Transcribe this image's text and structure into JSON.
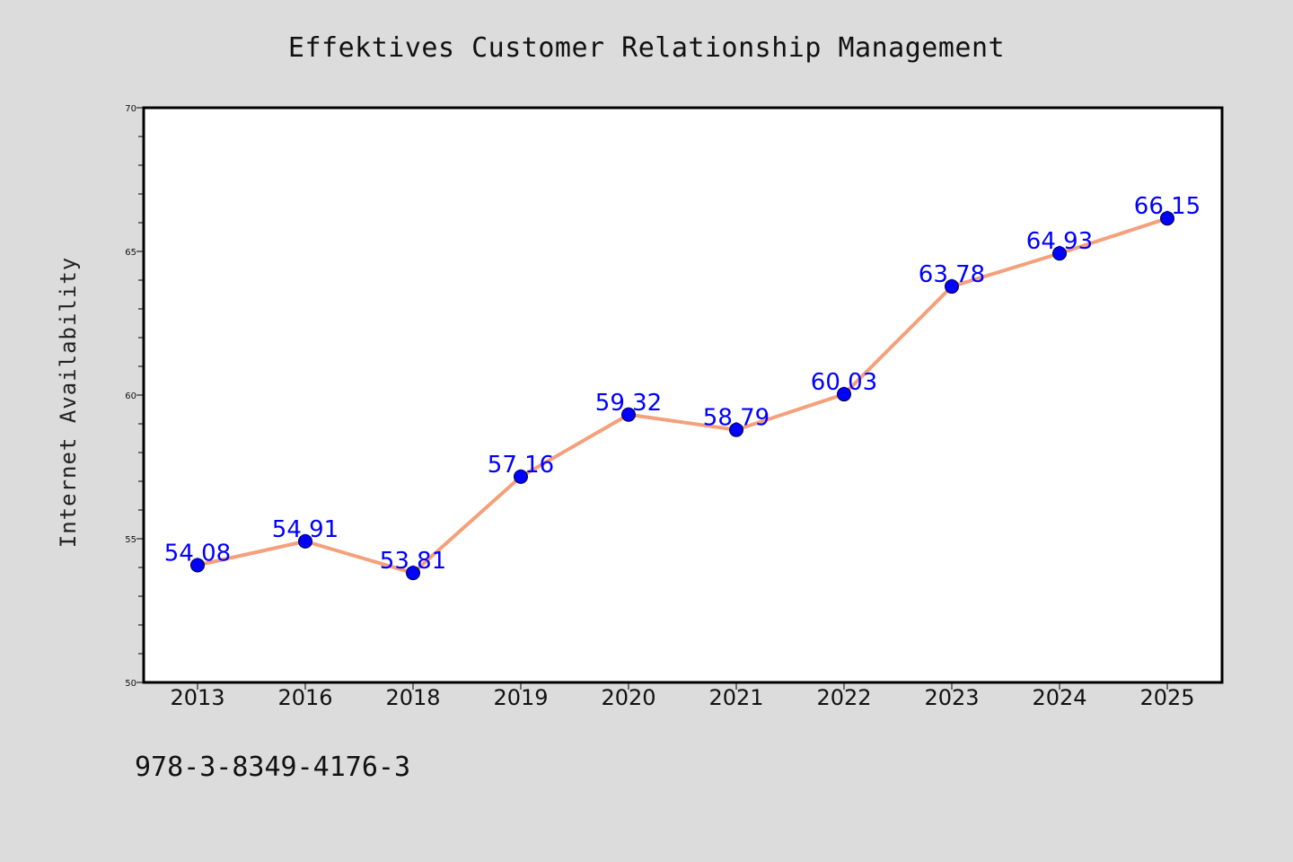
{
  "chart_data": {
    "type": "line",
    "title": "Effektives Customer Relationship Management",
    "xlabel": "",
    "ylabel": "Internet Availability",
    "categories": [
      "2013",
      "2016",
      "2018",
      "2019",
      "2020",
      "2021",
      "2022",
      "2023",
      "2024",
      "2025"
    ],
    "values": [
      54.08,
      54.91,
      53.81,
      57.16,
      59.32,
      58.79,
      60.03,
      63.78,
      64.93,
      66.15
    ],
    "data_labels": [
      "54.08",
      "54.91",
      "53.81",
      "57.16",
      "59.32",
      "58.79",
      "60.03",
      "63.78",
      "64.93",
      "66.15"
    ],
    "ylim": [
      50,
      70
    ],
    "yticks": [
      50,
      55,
      60,
      65,
      70
    ],
    "grid": false,
    "line_color": "#f4a07a",
    "marker_color": "#0000ff",
    "label_color": "#0000ff"
  },
  "footer": {
    "code": "978-3-8349-4176-3"
  }
}
